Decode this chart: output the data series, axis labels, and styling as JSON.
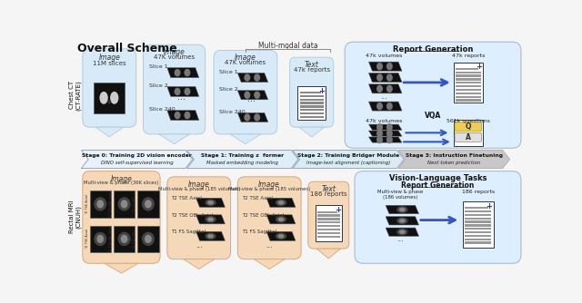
{
  "title": "Overall Scheme",
  "bg_color": "#f5f5f5",
  "chest_label": "Chest CT\n(CT-RATE)",
  "rectal_label": "Rectal MRI\n(CNUH)",
  "top_bg": "#d8eaf8",
  "top_ec": "#b0ccdd",
  "bottom_bg": "#f5d8b8",
  "bottom_ec": "#d4a880",
  "right_bg": "#ddeeff",
  "right_ec": "#aabbcc",
  "right_bottom_bg": "#ddeeff",
  "right_bottom_ec": "#aabbcc",
  "stage_labels": [
    "Stage 0: Training 2D vision encoder\nDINO self-supervised learning",
    "Stage 1: Training z  former\nMasked embedding modeling",
    "Stage 2: Training Bridger Module\nImage-text alignment (captioning)",
    "Stage 3: Instruction Finetuning\nNext token prediction"
  ],
  "stage_colors": [
    "#e8f2fb",
    "#ddeef8",
    "#d8ecf5",
    "#c8c8c8"
  ],
  "multimodal_label": "Multi-modal data",
  "report_gen_label": "Report Generation",
  "vqa_label": "VQA",
  "vision_lang_label": "Vision-Language Tasks"
}
